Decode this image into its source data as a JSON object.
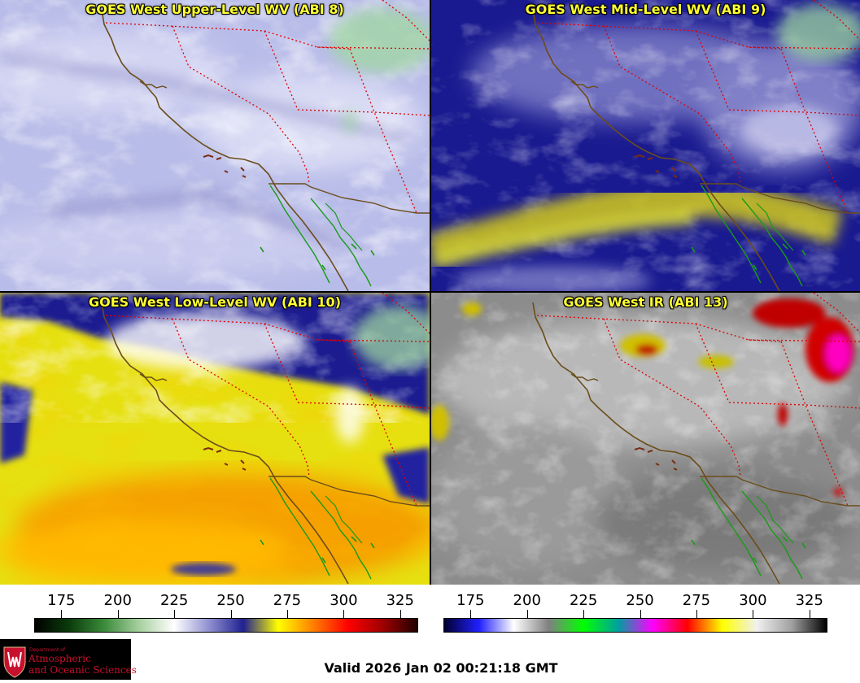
{
  "panels": {
    "upper": {
      "title": "GOES West Upper-Level WV (ABI 8)"
    },
    "mid": {
      "title": "GOES West Mid-Level WV (ABI 9)"
    },
    "low": {
      "title": "GOES West Low-Level WV (ABI 10)"
    },
    "ir": {
      "title": "GOES West IR (ABI 13)"
    }
  },
  "scales": {
    "wv": {
      "ticks": [
        "175",
        "200",
        "225",
        "250",
        "275",
        "300",
        "325"
      ],
      "range": [
        163,
        333
      ],
      "colors": [
        "#000000",
        "#0b3d0b",
        "#3c8c3c",
        "#a8d0a0",
        "#ffffff",
        "#9090d0",
        "#202090",
        "#ffff00",
        "#ff8000",
        "#ff0000",
        "#a00000",
        "#200000"
      ]
    },
    "ir": {
      "ticks": [
        "175",
        "200",
        "225",
        "250",
        "275",
        "300",
        "325"
      ],
      "range": [
        163,
        333
      ],
      "colors": [
        "#000030",
        "#2020ff",
        "#ffffff",
        "#808080",
        "#00ff00",
        "#00a0a0",
        "#ff00ff",
        "#ff0000",
        "#ffff00",
        "#f0f0f0",
        "#a0a0a0",
        "#000000"
      ]
    }
  },
  "logo": {
    "line1": "Department of",
    "line2": "Atmospheric",
    "line3": "and Oceanic Sciences"
  },
  "valid": "Valid 2026 Jan 02 00:21:18 GMT"
}
